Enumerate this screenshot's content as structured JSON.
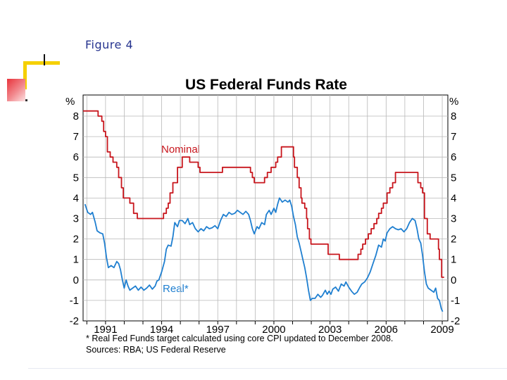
{
  "slide": {
    "title": "Figure 4"
  },
  "chart_data": {
    "type": "line",
    "title": "US Federal Funds Rate",
    "ylabel_left": "%",
    "ylabel_right": "%",
    "ylim": [
      -2,
      8
    ],
    "yticks": [
      8,
      7,
      6,
      5,
      4,
      3,
      2,
      1,
      0,
      -1,
      -2
    ],
    "xlim": [
      1989.8,
      2009.3
    ],
    "xticks": [
      1991,
      1994,
      1997,
      2000,
      2003,
      2006,
      2009
    ],
    "grid": true,
    "footnote": "*  Real Fed Funds target calculated using core CPI updated to December 2008.",
    "sources": "Sources: RBA; US Federal Reserve",
    "colors": {
      "nominal": "#c8161d",
      "real": "#1f7fd0",
      "grid": "#b8b8b8"
    },
    "series": [
      {
        "name": "Nominal",
        "step": true,
        "points": [
          [
            1989.8,
            8.25
          ],
          [
            1990.3,
            8.25
          ],
          [
            1990.6,
            8.0
          ],
          [
            1990.8,
            7.75
          ],
          [
            1990.9,
            7.25
          ],
          [
            1991.0,
            7.0
          ],
          [
            1991.1,
            6.25
          ],
          [
            1991.25,
            6.0
          ],
          [
            1991.4,
            5.75
          ],
          [
            1991.6,
            5.5
          ],
          [
            1991.7,
            5.0
          ],
          [
            1991.85,
            4.5
          ],
          [
            1991.95,
            4.0
          ],
          [
            1992.3,
            3.75
          ],
          [
            1992.5,
            3.25
          ],
          [
            1992.7,
            3.0
          ],
          [
            1994.1,
            3.25
          ],
          [
            1994.25,
            3.5
          ],
          [
            1994.35,
            3.75
          ],
          [
            1994.45,
            4.25
          ],
          [
            1994.6,
            4.75
          ],
          [
            1994.85,
            5.5
          ],
          [
            1995.1,
            6.0
          ],
          [
            1995.5,
            5.75
          ],
          [
            1995.95,
            5.5
          ],
          [
            1996.05,
            5.25
          ],
          [
            1997.25,
            5.5
          ],
          [
            1998.75,
            5.25
          ],
          [
            1998.85,
            5.0
          ],
          [
            1998.95,
            4.75
          ],
          [
            1999.5,
            5.0
          ],
          [
            1999.65,
            5.25
          ],
          [
            1999.85,
            5.5
          ],
          [
            2000.1,
            5.75
          ],
          [
            2000.2,
            6.0
          ],
          [
            2000.4,
            6.5
          ],
          [
            2001.05,
            6.0
          ],
          [
            2001.1,
            5.5
          ],
          [
            2001.25,
            5.0
          ],
          [
            2001.35,
            4.5
          ],
          [
            2001.45,
            4.0
          ],
          [
            2001.5,
            3.75
          ],
          [
            2001.65,
            3.5
          ],
          [
            2001.75,
            3.0
          ],
          [
            2001.8,
            2.5
          ],
          [
            2001.9,
            2.0
          ],
          [
            2001.98,
            1.75
          ],
          [
            2002.9,
            1.25
          ],
          [
            2003.5,
            1.0
          ],
          [
            2004.5,
            1.25
          ],
          [
            2004.65,
            1.5
          ],
          [
            2004.75,
            1.75
          ],
          [
            2004.9,
            2.0
          ],
          [
            2005.05,
            2.25
          ],
          [
            2005.2,
            2.5
          ],
          [
            2005.35,
            2.75
          ],
          [
            2005.5,
            3.0
          ],
          [
            2005.6,
            3.25
          ],
          [
            2005.75,
            3.5
          ],
          [
            2005.85,
            3.75
          ],
          [
            2006.05,
            4.25
          ],
          [
            2006.2,
            4.5
          ],
          [
            2006.35,
            4.75
          ],
          [
            2006.5,
            5.25
          ],
          [
            2007.7,
            4.75
          ],
          [
            2007.85,
            4.5
          ],
          [
            2007.95,
            4.25
          ],
          [
            2008.05,
            3.0
          ],
          [
            2008.2,
            2.25
          ],
          [
            2008.35,
            2.0
          ],
          [
            2008.8,
            1.5
          ],
          [
            2008.85,
            1.0
          ],
          [
            2008.97,
            0.13
          ],
          [
            2009.1,
            0.13
          ]
        ]
      },
      {
        "name": "Real*",
        "step": false,
        "points": [
          [
            1989.9,
            3.7
          ],
          [
            1990.05,
            3.3
          ],
          [
            1990.2,
            3.2
          ],
          [
            1990.3,
            3.3
          ],
          [
            1990.45,
            2.8
          ],
          [
            1990.55,
            2.4
          ],
          [
            1990.7,
            2.3
          ],
          [
            1990.85,
            2.25
          ],
          [
            1990.95,
            1.8
          ],
          [
            1991.05,
            1.1
          ],
          [
            1991.15,
            0.6
          ],
          [
            1991.3,
            0.7
          ],
          [
            1991.45,
            0.6
          ],
          [
            1991.6,
            0.9
          ],
          [
            1991.7,
            0.8
          ],
          [
            1991.8,
            0.5
          ],
          [
            1991.9,
            0.0
          ],
          [
            1992.0,
            -0.4
          ],
          [
            1992.1,
            0.0
          ],
          [
            1992.2,
            -0.3
          ],
          [
            1992.3,
            -0.5
          ],
          [
            1992.45,
            -0.4
          ],
          [
            1992.6,
            -0.3
          ],
          [
            1992.75,
            -0.5
          ],
          [
            1992.9,
            -0.35
          ],
          [
            1993.05,
            -0.5
          ],
          [
            1993.2,
            -0.4
          ],
          [
            1993.35,
            -0.25
          ],
          [
            1993.5,
            -0.45
          ],
          [
            1993.65,
            -0.3
          ],
          [
            1993.75,
            -0.05
          ],
          [
            1993.85,
            0.0
          ],
          [
            1994.0,
            0.4
          ],
          [
            1994.15,
            0.9
          ],
          [
            1994.25,
            1.5
          ],
          [
            1994.35,
            1.7
          ],
          [
            1994.5,
            1.65
          ],
          [
            1994.6,
            2.1
          ],
          [
            1994.7,
            2.8
          ],
          [
            1994.85,
            2.6
          ],
          [
            1994.95,
            2.9
          ],
          [
            1995.1,
            2.9
          ],
          [
            1995.25,
            2.75
          ],
          [
            1995.4,
            3.0
          ],
          [
            1995.5,
            2.7
          ],
          [
            1995.65,
            2.8
          ],
          [
            1995.8,
            2.5
          ],
          [
            1995.95,
            2.35
          ],
          [
            1996.1,
            2.5
          ],
          [
            1996.25,
            2.4
          ],
          [
            1996.4,
            2.6
          ],
          [
            1996.55,
            2.5
          ],
          [
            1996.7,
            2.55
          ],
          [
            1996.85,
            2.65
          ],
          [
            1997.0,
            2.5
          ],
          [
            1997.15,
            2.9
          ],
          [
            1997.3,
            3.2
          ],
          [
            1997.45,
            3.1
          ],
          [
            1997.6,
            3.3
          ],
          [
            1997.75,
            3.2
          ],
          [
            1997.9,
            3.25
          ],
          [
            1998.05,
            3.4
          ],
          [
            1998.2,
            3.3
          ],
          [
            1998.35,
            3.2
          ],
          [
            1998.5,
            3.35
          ],
          [
            1998.65,
            3.2
          ],
          [
            1998.75,
            2.9
          ],
          [
            1998.85,
            2.5
          ],
          [
            1998.95,
            2.25
          ],
          [
            1999.1,
            2.6
          ],
          [
            1999.2,
            2.5
          ],
          [
            1999.35,
            2.8
          ],
          [
            1999.5,
            2.7
          ],
          [
            1999.6,
            3.2
          ],
          [
            1999.75,
            3.4
          ],
          [
            1999.85,
            3.2
          ],
          [
            2000.0,
            3.5
          ],
          [
            2000.1,
            3.3
          ],
          [
            2000.2,
            3.7
          ],
          [
            2000.3,
            4.0
          ],
          [
            2000.45,
            3.8
          ],
          [
            2000.6,
            3.9
          ],
          [
            2000.75,
            3.8
          ],
          [
            2000.85,
            3.9
          ],
          [
            2000.95,
            3.6
          ],
          [
            2001.05,
            3.1
          ],
          [
            2001.15,
            2.7
          ],
          [
            2001.25,
            2.1
          ],
          [
            2001.35,
            1.8
          ],
          [
            2001.45,
            1.4
          ],
          [
            2001.55,
            1.0
          ],
          [
            2001.65,
            0.6
          ],
          [
            2001.75,
            0.1
          ],
          [
            2001.85,
            -0.5
          ],
          [
            2001.95,
            -1.0
          ],
          [
            2002.05,
            -0.9
          ],
          [
            2002.2,
            -0.9
          ],
          [
            2002.35,
            -0.7
          ],
          [
            2002.5,
            -0.85
          ],
          [
            2002.6,
            -0.75
          ],
          [
            2002.75,
            -0.5
          ],
          [
            2002.85,
            -0.7
          ],
          [
            2002.95,
            -0.55
          ],
          [
            2003.05,
            -0.7
          ],
          [
            2003.15,
            -0.45
          ],
          [
            2003.3,
            -0.35
          ],
          [
            2003.45,
            -0.55
          ],
          [
            2003.6,
            -0.2
          ],
          [
            2003.75,
            -0.3
          ],
          [
            2003.85,
            -0.1
          ],
          [
            2004.0,
            -0.35
          ],
          [
            2004.15,
            -0.55
          ],
          [
            2004.3,
            -0.7
          ],
          [
            2004.45,
            -0.6
          ],
          [
            2004.6,
            -0.35
          ],
          [
            2004.7,
            -0.2
          ],
          [
            2004.85,
            -0.1
          ],
          [
            2005.0,
            0.1
          ],
          [
            2005.15,
            0.4
          ],
          [
            2005.3,
            0.8
          ],
          [
            2005.45,
            1.2
          ],
          [
            2005.6,
            1.7
          ],
          [
            2005.75,
            1.6
          ],
          [
            2005.85,
            2.0
          ],
          [
            2005.95,
            1.9
          ],
          [
            2006.05,
            2.3
          ],
          [
            2006.2,
            2.5
          ],
          [
            2006.35,
            2.6
          ],
          [
            2006.5,
            2.5
          ],
          [
            2006.65,
            2.45
          ],
          [
            2006.8,
            2.5
          ],
          [
            2006.95,
            2.35
          ],
          [
            2007.1,
            2.5
          ],
          [
            2007.25,
            2.8
          ],
          [
            2007.4,
            3.0
          ],
          [
            2007.55,
            2.9
          ],
          [
            2007.65,
            2.5
          ],
          [
            2007.75,
            2.0
          ],
          [
            2007.85,
            1.8
          ],
          [
            2007.95,
            1.2
          ],
          [
            2008.05,
            0.4
          ],
          [
            2008.15,
            -0.2
          ],
          [
            2008.25,
            -0.4
          ],
          [
            2008.4,
            -0.5
          ],
          [
            2008.55,
            -0.6
          ],
          [
            2008.65,
            -0.4
          ],
          [
            2008.75,
            -0.9
          ],
          [
            2008.85,
            -1.0
          ],
          [
            2008.95,
            -1.4
          ],
          [
            2009.02,
            -1.55
          ]
        ]
      }
    ]
  }
}
